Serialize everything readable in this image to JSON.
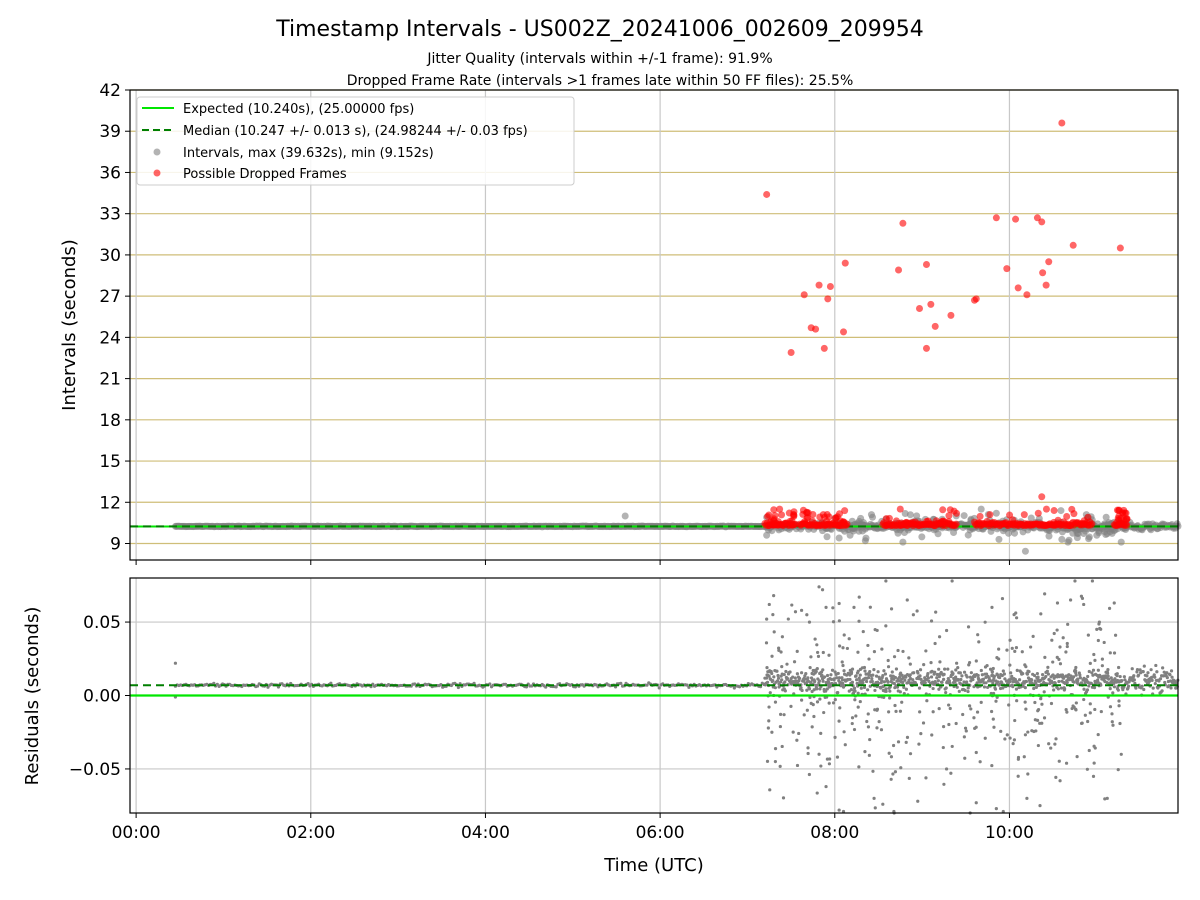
{
  "chart_data": [
    {
      "type": "scatter",
      "title": "Timestamp Intervals - US002Z_20241006_002609_209954",
      "subtitle_lines": [
        "Jitter Quality (intervals within +/-1 frame): 91.9%",
        "Dropped Frame Rate (intervals >1 frames late within 50 FF files): 25.5%"
      ],
      "ylabel": "Intervals (seconds)",
      "xlim_hours": [
        -0.07,
        11.93
      ],
      "ylim": [
        7.8,
        42
      ],
      "yticks": [
        9,
        12,
        15,
        18,
        21,
        24,
        27,
        30,
        33,
        36,
        39,
        42
      ],
      "ytick_labels": [
        "9",
        "12",
        "15",
        "18",
        "21",
        "24",
        "27",
        "30",
        "33",
        "36",
        "39",
        "42"
      ],
      "grid": true,
      "legend_position": "top-left",
      "legend": [
        "Expected (10.240s), (25.00000 fps)",
        "Median (10.247 +/- 0.013 s), (24.98244 +/- 0.03 fps)",
        "Intervals, max (39.632s), min (9.152s)",
        "Possible Dropped Frames"
      ],
      "expected": 10.24,
      "median": 10.247,
      "colors": {
        "expected": "#00e600",
        "median": "#007f00",
        "intervals": "#808080",
        "dropped": "#ff0000",
        "hgrid": "#cfbe78",
        "vgrid": "#c8c8c8"
      },
      "dropped_points": [
        [
          7.22,
          34.4
        ],
        [
          7.5,
          22.9
        ],
        [
          7.65,
          27.1
        ],
        [
          7.73,
          24.7
        ],
        [
          7.78,
          24.6
        ],
        [
          7.82,
          27.8
        ],
        [
          7.88,
          23.2
        ],
        [
          7.92,
          26.8
        ],
        [
          7.95,
          27.7
        ],
        [
          8.1,
          24.4
        ],
        [
          8.12,
          29.4
        ],
        [
          8.73,
          28.9
        ],
        [
          8.78,
          32.3
        ],
        [
          8.97,
          26.1
        ],
        [
          9.05,
          29.3
        ],
        [
          9.05,
          23.2
        ],
        [
          9.1,
          26.4
        ],
        [
          9.15,
          24.8
        ],
        [
          9.33,
          25.6
        ],
        [
          9.6,
          26.7
        ],
        [
          9.62,
          26.8
        ],
        [
          9.85,
          32.7
        ],
        [
          9.97,
          29.0
        ],
        [
          10.07,
          32.6
        ],
        [
          10.1,
          27.6
        ],
        [
          10.2,
          27.1
        ],
        [
          10.32,
          32.7
        ],
        [
          10.37,
          32.4
        ],
        [
          10.38,
          28.7
        ],
        [
          10.42,
          27.8
        ],
        [
          10.45,
          29.5
        ],
        [
          10.6,
          39.6
        ],
        [
          10.73,
          30.7
        ],
        [
          11.27,
          30.5
        ],
        [
          10.37,
          12.4
        ],
        [
          8.75,
          11.5
        ],
        [
          10.17,
          11.1
        ],
        [
          10.33,
          11.2
        ]
      ],
      "interval_outliers": [
        [
          5.6,
          11.0
        ],
        [
          7.22,
          10.9
        ],
        [
          7.22,
          9.6
        ],
        [
          8.05,
          9.4
        ],
        [
          8.35,
          9.2
        ],
        [
          8.42,
          11.1
        ],
        [
          8.78,
          9.1
        ],
        [
          9.85,
          11.2
        ],
        [
          9.88,
          9.3
        ],
        [
          10.6,
          9.3
        ],
        [
          10.67,
          9.1
        ],
        [
          11.0,
          9.6
        ],
        [
          11.28,
          9.1
        ]
      ]
    },
    {
      "type": "scatter",
      "xlabel": "Time (UTC)",
      "ylabel": "Residuals (seconds)",
      "xlim_hours": [
        -0.07,
        11.93
      ],
      "ylim": [
        -0.08,
        0.08
      ],
      "yticks": [
        -0.05,
        0.0,
        0.05
      ],
      "ytick_labels": [
        "−0.05",
        "0.00",
        "0.05"
      ],
      "xticks_hours": [
        0,
        2,
        4,
        6,
        8,
        10
      ],
      "xtick_labels": [
        "00:00",
        "02:00",
        "04:00",
        "06:00",
        "08:00",
        "10:00"
      ],
      "expected_residual": 0.0,
      "median_residual": 0.007,
      "grid": true,
      "residual_outliers": [
        [
          0.45,
          0.022
        ],
        [
          0.45,
          -0.001
        ],
        [
          7.22,
          0.052
        ],
        [
          7.25,
          0.062
        ],
        [
          7.3,
          0.068
        ],
        [
          7.28,
          -0.025
        ],
        [
          7.32,
          -0.045
        ],
        [
          7.4,
          0.04
        ],
        [
          7.55,
          0.057
        ],
        [
          7.62,
          0.058
        ],
        [
          7.68,
          0.055
        ],
        [
          7.82,
          0.074
        ],
        [
          7.86,
          0.072
        ],
        [
          7.9,
          0.06
        ],
        [
          7.82,
          -0.04
        ],
        [
          7.9,
          -0.062
        ],
        [
          8.05,
          -0.078
        ],
        [
          8.1,
          -0.079
        ],
        [
          8.22,
          0.06
        ],
        [
          8.28,
          0.067
        ],
        [
          8.4,
          -0.03
        ],
        [
          8.45,
          -0.07
        ],
        [
          8.55,
          -0.074
        ],
        [
          8.65,
          0.059
        ],
        [
          8.68,
          -0.08
        ],
        [
          8.83,
          0.065
        ],
        [
          8.9,
          0.055
        ],
        [
          8.95,
          -0.072
        ],
        [
          9.2,
          0.04
        ],
        [
          9.28,
          -0.05
        ],
        [
          9.55,
          -0.08
        ],
        [
          9.62,
          -0.073
        ],
        [
          9.8,
          0.06
        ],
        [
          9.85,
          -0.077
        ],
        [
          9.92,
          0.066
        ],
        [
          10.1,
          -0.055
        ],
        [
          10.2,
          -0.07
        ],
        [
          10.35,
          -0.075
        ],
        [
          10.55,
          0.063
        ],
        [
          10.7,
          0.065
        ],
        [
          10.85,
          0.062
        ],
        [
          10.95,
          0.078
        ],
        [
          10.97,
          -0.046
        ],
        [
          11.0,
          0.045
        ],
        [
          11.03,
          0.05
        ],
        [
          11.12,
          -0.07
        ],
        [
          11.2,
          0.063
        ]
      ]
    }
  ]
}
